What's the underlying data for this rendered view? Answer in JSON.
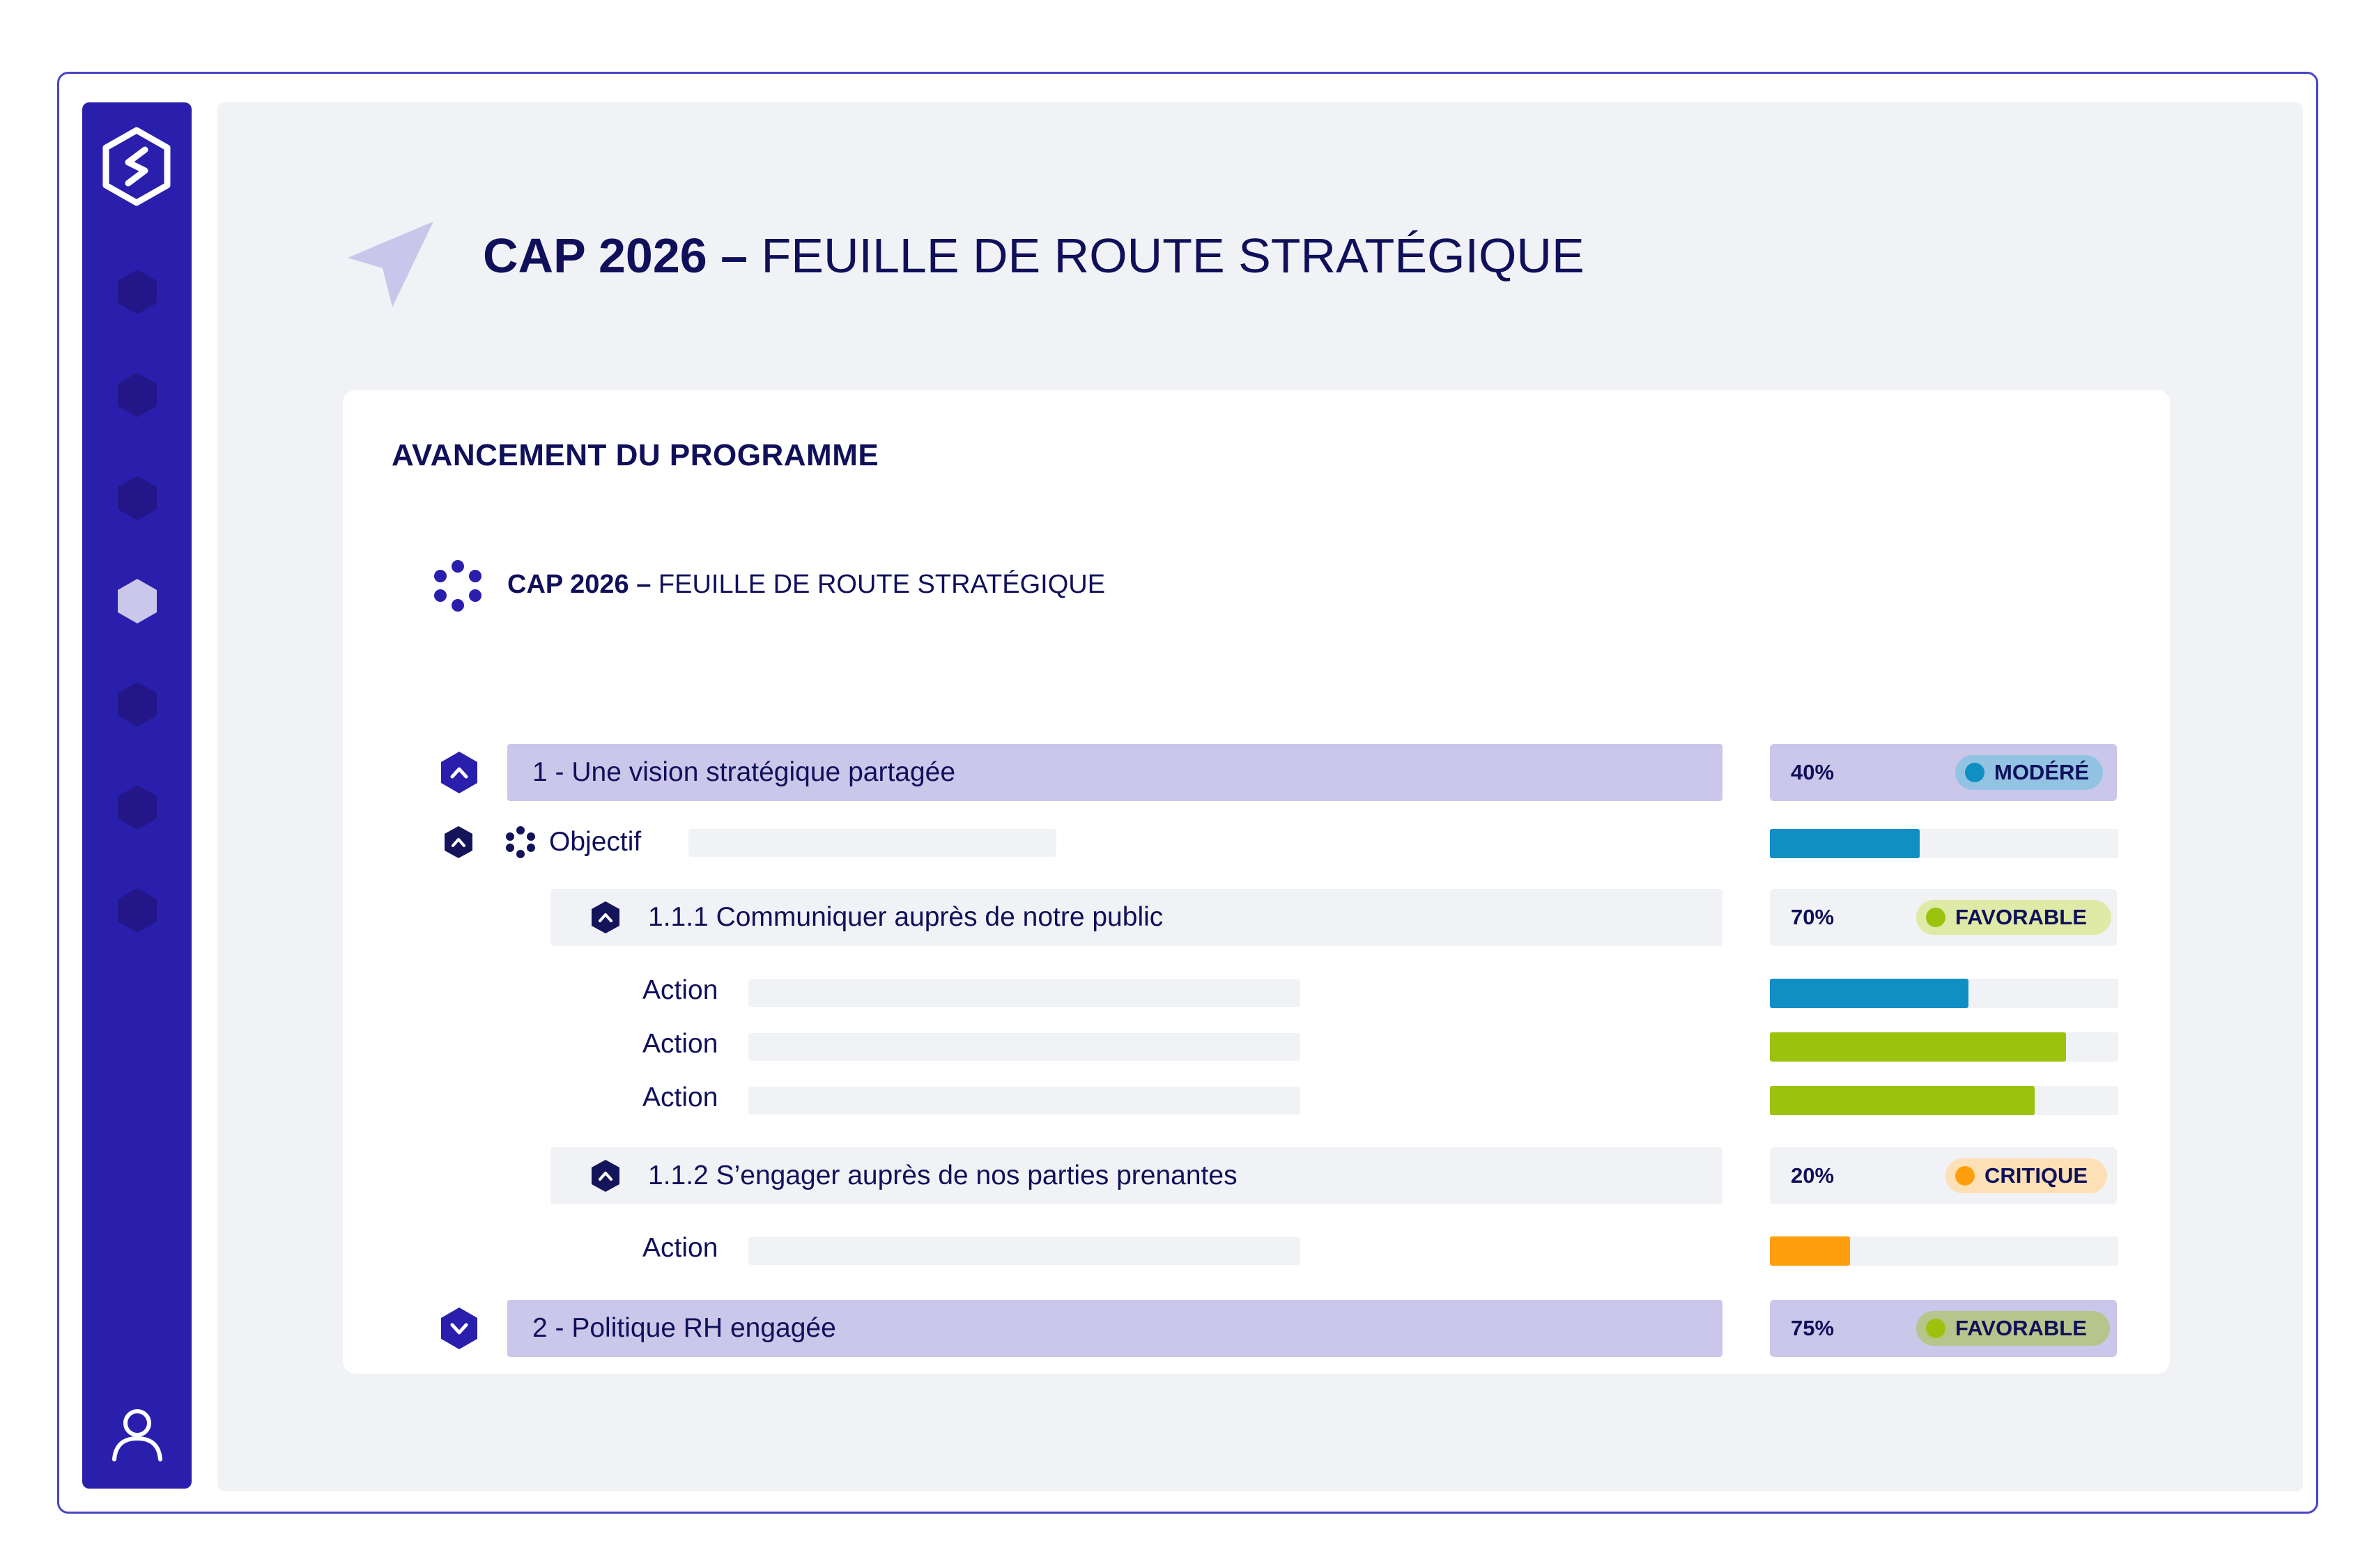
{
  "app": {
    "title_bold": "CAP 2026 –",
    "title_rest": " FEUILLE DE ROUTE STRATÉGIQUE"
  },
  "sidebar": {
    "logo_icon": "hexagon-s-logo",
    "items": [
      {
        "icon": "hexagon-icon",
        "active": false
      },
      {
        "icon": "hexagon-icon",
        "active": false
      },
      {
        "icon": "hexagon-icon",
        "active": false
      },
      {
        "icon": "hexagon-icon",
        "active": true
      },
      {
        "icon": "hexagon-icon",
        "active": false
      },
      {
        "icon": "hexagon-icon",
        "active": false
      },
      {
        "icon": "hexagon-icon",
        "active": false
      }
    ],
    "user_icon": "user-icon"
  },
  "card": {
    "section_title": "AVANCEMENT DU PROGRAMME",
    "program": {
      "title_bold": "CAP 2026 –",
      "title_rest": " FEUILLE DE ROUTE STRATÉGIQUE"
    },
    "axis1": {
      "label": "1 - Une vision stratégique partagée",
      "percent": "40%",
      "status": "MODÉRÉ",
      "expanded": true
    },
    "objective": {
      "label": "Objectif",
      "progress": 0.43
    },
    "sub1": {
      "label": "1.1.1 Communiquer auprès de notre public",
      "percent": "70%",
      "status": "FAVORABLE",
      "actions": [
        {
          "label": "Action",
          "progress": 0.57
        },
        {
          "label": "Action",
          "progress": 0.85
        },
        {
          "label": "Action",
          "progress": 0.76
        }
      ]
    },
    "sub2": {
      "label": "1.1.2 S’engager auprès de nos parties prenantes",
      "percent": "20%",
      "status": "CRITIQUE",
      "actions": [
        {
          "label": "Action",
          "progress": 0.23
        }
      ]
    },
    "axis2": {
      "label": "2 - Politique RH engagée",
      "percent": "75%",
      "status": "FAVORABLE",
      "expanded": false
    }
  },
  "colors": {
    "sidebar": "#2a1fad",
    "accent_light": "#cbc7ea",
    "moderate": "#0f8fc4",
    "favorable": "#9bc20d",
    "critical": "#ff9f0e"
  }
}
